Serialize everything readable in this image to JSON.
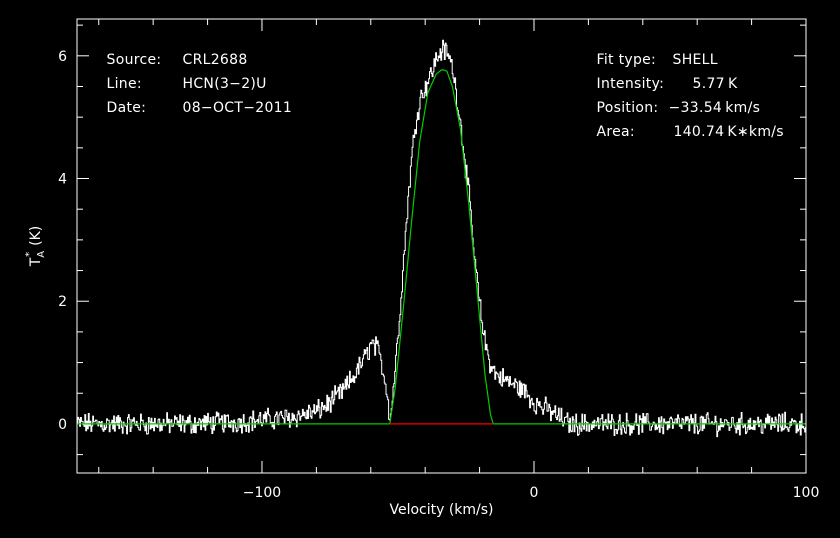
{
  "info": {
    "source_label": "Source:",
    "source_value": "CRL2688",
    "line_label": "Line:",
    "line_value": "HCN(3−2)U",
    "date_label": "Date:",
    "date_value": "08−OCT−2011",
    "fit_label": "Fit type:",
    "fit_value": "SHELL",
    "intensity_label": "Intensity:",
    "intensity_value": "5.77 K",
    "position_label": "Position:",
    "position_value": "−33.54 km/s",
    "area_label": "Area:",
    "area_value": "140.74 K∗km/s"
  },
  "chart_data": {
    "type": "line",
    "xlabel": "Velocity (km/s)",
    "ylabel_main": "T",
    "ylabel_sub": "A",
    "ylabel_sup": "*",
    "ylabel_unit": "(K)",
    "xlim": [
      -168,
      100
    ],
    "ylim": [
      -0.8,
      6.6
    ],
    "xticks": [
      -100,
      0,
      100
    ],
    "xtick_labels": [
      "−100",
      "0",
      "100"
    ],
    "yticks": [
      0,
      2,
      4,
      6
    ],
    "ytick_labels": [
      "0",
      "2",
      "4",
      "6"
    ],
    "colors": {
      "data": "#ffffff",
      "fit": "#00cc00",
      "baseline": "#ff0000",
      "axes": "#ffffff"
    },
    "series": [
      {
        "role": "observed",
        "x": [
          -168,
          -150,
          -130,
          -110,
          -90,
          -80,
          -75,
          -70,
          -66,
          -62,
          -60,
          -58,
          -56,
          -54,
          -53,
          -52,
          -50,
          -48,
          -46,
          -44,
          -42,
          -40,
          -38,
          -36,
          -34,
          -32,
          -30,
          -28,
          -26,
          -24,
          -22,
          -20,
          -18,
          -16,
          -14,
          -12,
          -10,
          -8,
          -6,
          -4,
          -2,
          0,
          4,
          8,
          11,
          13,
          20,
          40,
          60,
          80,
          100
        ],
        "y": [
          0.0,
          0.0,
          0.0,
          0.03,
          0.1,
          0.2,
          0.35,
          0.55,
          0.8,
          1.1,
          1.3,
          1.25,
          0.95,
          0.5,
          0.05,
          0.5,
          1.5,
          2.7,
          3.9,
          4.8,
          5.3,
          5.5,
          5.7,
          5.95,
          6.1,
          6.05,
          5.8,
          5.2,
          4.5,
          3.7,
          2.7,
          1.9,
          1.3,
          0.95,
          0.8,
          0.75,
          0.7,
          0.65,
          0.6,
          0.55,
          0.45,
          0.35,
          0.25,
          0.15,
          0.05,
          0.0,
          0.0,
          0.0,
          0.0,
          0.0,
          0.0
        ]
      },
      {
        "role": "fit",
        "x": [
          -168,
          -75,
          -53,
          -51,
          -48,
          -45,
          -42,
          -39,
          -36,
          -34,
          -33.5,
          -32,
          -30,
          -27,
          -24,
          -21,
          -18,
          -16,
          -15,
          12,
          100
        ],
        "y": [
          0.0,
          0.0,
          0.0,
          0.6,
          1.9,
          3.3,
          4.6,
          5.4,
          5.7,
          5.77,
          5.77,
          5.75,
          5.5,
          4.8,
          3.6,
          2.2,
          0.8,
          0.15,
          0.0,
          0.0,
          0.0
        ]
      },
      {
        "role": "baseline-window",
        "x": [
          -53,
          -15
        ],
        "y": [
          0.0,
          0.0
        ]
      }
    ]
  }
}
